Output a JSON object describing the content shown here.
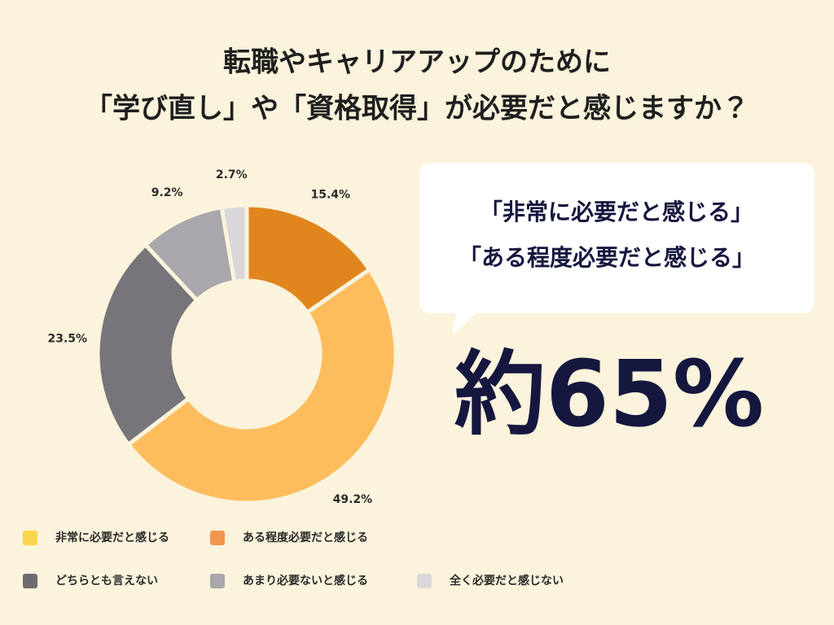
{
  "chart_data": {
    "type": "pie",
    "title": [
      "転職やキャリアアップのために",
      "「学び直し」や「資格取得」が必要だと感じますか？"
    ],
    "categories": [
      "非常に必要だと感じる",
      "ある程度必要だと感じる",
      "どちらとも言えない",
      "あまり必要ないと感じる",
      "全く必要だと感じない"
    ],
    "values": [
      15.4,
      49.2,
      23.5,
      9.2,
      2.7
    ],
    "value_labels": [
      "15.4%",
      "49.2%",
      "23.5%",
      "9.2%",
      "2.7%"
    ],
    "colors": [
      "#e0861c",
      "#fdbd5d",
      "#77757a",
      "#a9a7ab",
      "#d9d7d9"
    ],
    "legend_colors": [
      "#f9d64c",
      "#f2964e",
      "#6e6c70",
      "#a9a7ab",
      "#d9d7d9"
    ],
    "donut": true
  },
  "callout": {
    "lines": [
      "「非常に必要だと感じる」",
      "「ある程度必要だと感じる」"
    ],
    "highlight": "約65%"
  }
}
